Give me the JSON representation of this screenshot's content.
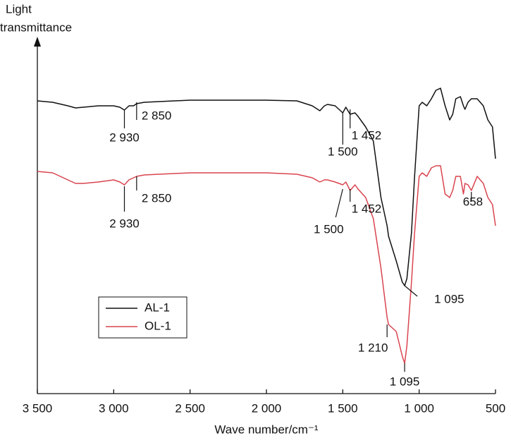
{
  "chart_data": {
    "type": "line",
    "y_label": [
      "Light",
      "transmittance"
    ],
    "x_label": "Wave number/cm⁻¹",
    "x": [
      3500,
      3400,
      3300,
      3250,
      3200,
      3100,
      3000,
      2960,
      2930,
      2900,
      2870,
      2850,
      2800,
      2500,
      2000,
      1800,
      1700,
      1650,
      1620,
      1600,
      1550,
      1500,
      1480,
      1452,
      1420,
      1400,
      1350,
      1300,
      1250,
      1210,
      1200,
      1150,
      1110,
      1095,
      1080,
      1050,
      1030,
      1000,
      980,
      950,
      920,
      890,
      860,
      830,
      800,
      780,
      760,
      730,
      710,
      700,
      680,
      658,
      620,
      580,
      550,
      520,
      500
    ],
    "series": [
      {
        "name": "AL-1",
        "color": "#111111",
        "values": [
          83,
          82.6,
          81.6,
          81,
          81.2,
          81.6,
          81.6,
          81.2,
          80.4,
          81.6,
          81.6,
          82.2,
          82.6,
          83.2,
          83.2,
          83,
          81.6,
          80.2,
          81.6,
          82,
          81.6,
          79.6,
          81.2,
          79.2,
          79.6,
          78.6,
          75.6,
          71.6,
          55.6,
          47.6,
          44.6,
          37.6,
          31.6,
          30.6,
          32.6,
          45.6,
          61.6,
          81.6,
          82.6,
          81.6,
          83.6,
          86,
          86.6,
          81.6,
          77.6,
          79.2,
          83.6,
          84.2,
          81.6,
          80.6,
          82.6,
          83.6,
          83.6,
          81.6,
          77.6,
          75.6,
          66.6
        ]
      },
      {
        "name": "OL-1",
        "color": "#d9444f",
        "values": [
          63,
          62.6,
          60.6,
          59.6,
          59.6,
          60,
          60.6,
          60,
          59.2,
          60.6,
          61.2,
          61.6,
          62,
          62.6,
          62.6,
          62.2,
          61.2,
          60,
          60.6,
          60.6,
          60,
          59.2,
          60,
          57.6,
          59.2,
          58,
          55.6,
          49.6,
          35.6,
          21.6,
          19.6,
          17.6,
          10.6,
          8.6,
          13.6,
          31.6,
          45.6,
          61.6,
          62.6,
          61.6,
          64,
          64.6,
          64.6,
          56.6,
          55.6,
          57.6,
          61.6,
          61.6,
          56.6,
          59.6,
          59.2,
          57.6,
          61.6,
          59.6,
          55.6,
          53.6,
          47.6
        ]
      }
    ],
    "xlim": [
      3500,
      500
    ],
    "ylim": [
      0,
      100
    ],
    "xticks": [
      {
        "value": 3500,
        "label": "3 500"
      },
      {
        "value": 3000,
        "label": "3 000"
      },
      {
        "value": 2500,
        "label": "2 500"
      },
      {
        "value": 2000,
        "label": "2 000"
      },
      {
        "value": 1500,
        "label": "1 500"
      },
      {
        "value": 1000,
        "label": "1 000"
      },
      500
    ],
    "annotations": [
      {
        "text": "2 930",
        "x": 2930
      },
      {
        "text": "2 850",
        "x": 2850
      },
      {
        "text": "1 500",
        "x": 1500
      },
      {
        "text": "1 452",
        "x": 1452
      },
      {
        "text": "1 095",
        "x": 1095
      },
      {
        "text": "2 930",
        "x": 2930
      },
      {
        "text": "2 850",
        "x": 2850
      },
      {
        "text": "1 500",
        "x": 1500
      },
      {
        "text": "1 452",
        "x": 1452
      },
      {
        "text": "1 210",
        "x": 1210
      },
      {
        "text": "1 095",
        "x": 1095
      },
      {
        "text": "658",
        "x": 658
      }
    ],
    "legend": "lower-left"
  }
}
